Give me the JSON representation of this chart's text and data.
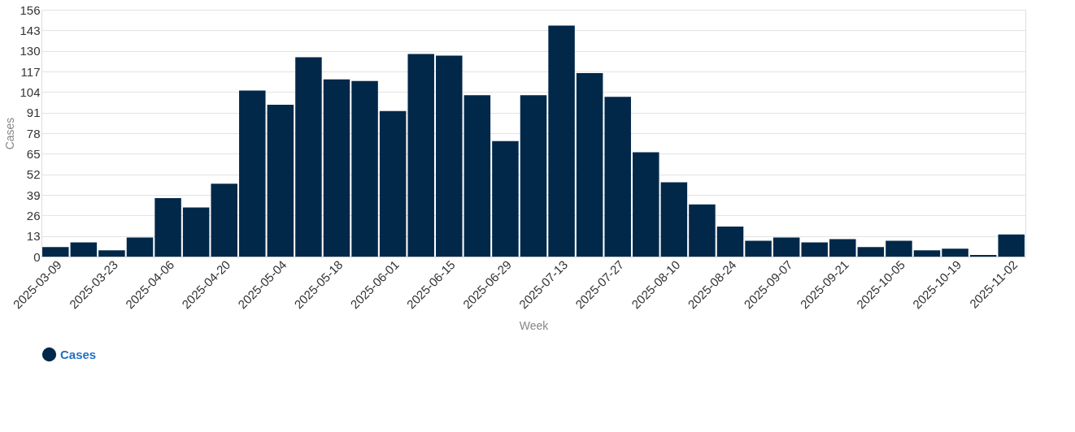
{
  "chart_data": {
    "type": "bar",
    "xlabel": "Week",
    "ylabel": "Cases",
    "categories": [
      "2025-03-09",
      null,
      "2025-03-23",
      null,
      "2025-04-06",
      null,
      "2025-04-20",
      null,
      "2025-05-04",
      null,
      "2025-05-18",
      null,
      "2025-06-01",
      null,
      "2025-06-15",
      null,
      "2025-06-29",
      null,
      "2025-07-13",
      null,
      "2025-07-27",
      null,
      "2025-08-10",
      null,
      "2025-08-24",
      null,
      "2025-09-07",
      null,
      "2025-09-21",
      null,
      "2025-10-05",
      null,
      "2025-10-19",
      null,
      "2025-11-02"
    ],
    "series": [
      {
        "name": "Cases",
        "color": "#022849",
        "values": [
          6,
          9,
          4,
          12,
          37,
          31,
          46,
          105,
          96,
          126,
          112,
          111,
          92,
          128,
          127,
          102,
          73,
          102,
          146,
          116,
          101,
          66,
          47,
          33,
          19,
          10,
          12,
          9,
          11,
          6,
          10,
          4,
          5,
          1,
          14
        ]
      }
    ],
    "ylim": [
      0,
      156
    ],
    "yticks": [
      0,
      13,
      26,
      39,
      52,
      65,
      78,
      91,
      104,
      117,
      130,
      143,
      156
    ],
    "grid": "y",
    "legend": "bottom"
  }
}
